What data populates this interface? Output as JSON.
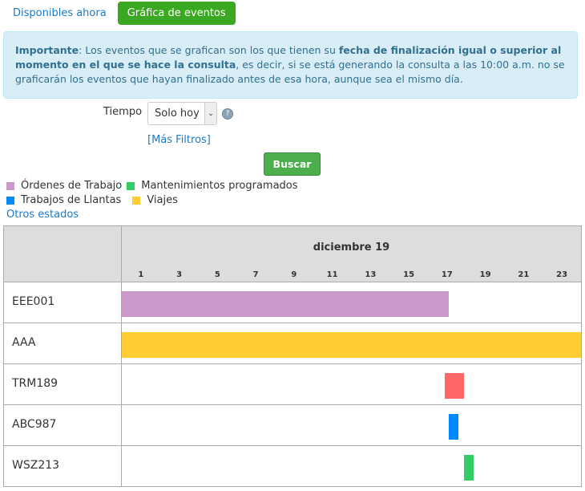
{
  "tabs": {
    "available": "Disponibles ahora",
    "chart": "Gráfica de eventos"
  },
  "alert": {
    "bold1": "Importante",
    "text1": ": Los eventos que se grafican son los que tienen su ",
    "bold2": "fecha de finalización igual o superior al momento en el que se hace la consulta",
    "text2": ", es decir, si se está generando la consulta a las 10:00 a.m. no se graficarán los eventos que hayan finalizado antes de esa hora, aunque sea el mismo día."
  },
  "filters": {
    "time_label": "Tiempo",
    "time_value": "Solo hoy",
    "help": "?",
    "more": "[Más Filtros]",
    "search": "Buscar"
  },
  "legend": [
    {
      "label": "Órdenes de Trabajo",
      "color": "#cc99cc"
    },
    {
      "label": "Mantenimientos programados",
      "color": "#33cc66"
    },
    {
      "label": "Trabajos de Llantas",
      "color": "#0088ff"
    },
    {
      "label": "Viajes",
      "color": "#ffcc33"
    }
  ],
  "other_states": "Otros estados",
  "chart_data": {
    "type": "gantt",
    "title": "diciembre 19",
    "x_unit": "hour",
    "xlim": [
      0,
      24
    ],
    "ticks": [
      "1",
      "3",
      "5",
      "7",
      "9",
      "11",
      "13",
      "15",
      "17",
      "19",
      "21",
      "23"
    ],
    "rows": [
      {
        "label": "EEE001",
        "start": 0,
        "end": 17.1,
        "color": "#cc99cc"
      },
      {
        "label": "AAA",
        "start": 0,
        "end": 24,
        "color": "#ffcc33"
      },
      {
        "label": "TRM189",
        "start": 16.9,
        "end": 17.9,
        "color": "#ff6666"
      },
      {
        "label": "ABC987",
        "start": 17.1,
        "end": 17.6,
        "color": "#0088ff"
      },
      {
        "label": "WSZ213",
        "start": 17.9,
        "end": 18.4,
        "color": "#33cc66"
      }
    ]
  }
}
